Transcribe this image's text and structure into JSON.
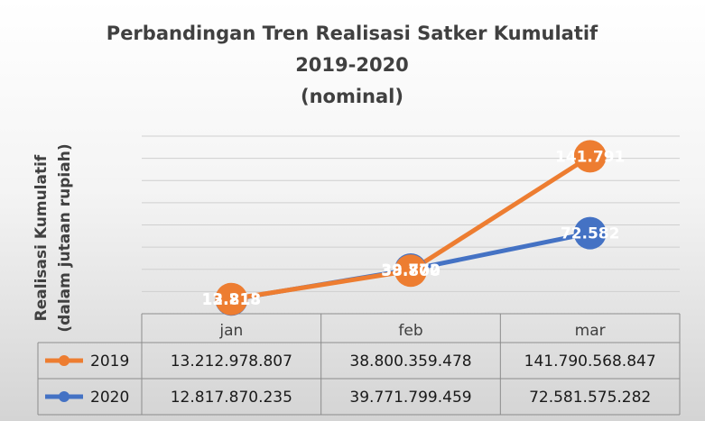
{
  "chart_data": {
    "type": "line",
    "title_lines": [
      "Perbandingan Tren Realisasi Satker Kumulatif",
      "2019-2020",
      "(nominal)"
    ],
    "ylabel_lines": [
      "Realisasi Kumulatif",
      "(dalam jutaan rupiah)"
    ],
    "xlabel": "",
    "categories": [
      "jan",
      "feb",
      "mar"
    ],
    "ylim": [
      0,
      160000
    ],
    "grid": true,
    "legend_placement": "data-table-left",
    "series": [
      {
        "name": "2019",
        "color": "#ED7D31",
        "values": [
          13212.979,
          38800.359,
          141790.569
        ],
        "point_labels": [
          "13.213",
          "38.800",
          "141.791"
        ],
        "table_values": [
          "13.212.978.807",
          "38.800.359.478",
          "141.790.568.847"
        ]
      },
      {
        "name": "2020",
        "color": "#4472C4",
        "values": [
          12817.87,
          39771.799,
          72581.575
        ],
        "point_labels": [
          "12.818",
          "39.772",
          "72.582"
        ],
        "table_values": [
          "12.817.870.235",
          "39.771.799.459",
          "72.581.575.282"
        ]
      }
    ]
  }
}
